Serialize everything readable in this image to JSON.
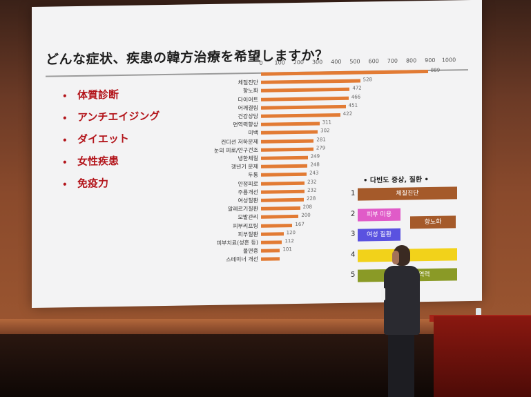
{
  "slide": {
    "title": "どんな症状、疾患の韓方治療を希望しますか？",
    "bullets": [
      "体質診断",
      "アンチエイジング",
      "ダイエット",
      "女性疾患",
      "免疫力"
    ]
  },
  "chart_data": {
    "type": "bar",
    "orientation": "horizontal",
    "xlim": [
      0,
      1000
    ],
    "ticks": [
      "0",
      "100",
      "200",
      "300",
      "400",
      "500",
      "600",
      "700",
      "800",
      "900",
      "1000"
    ],
    "categories": [
      "",
      "체질진단",
      "항노화",
      "다이어트",
      "어깨결림",
      "건강상담",
      "면역력향상",
      "미백",
      "컨디션 저하문제",
      "눈의 피로/안구건조",
      "냉한체질",
      "갱년기 문제",
      "두통",
      "안정피로",
      "주름개선",
      "여성질환",
      "알레르기질환",
      "모발관리",
      "피부리프팅",
      "피부질환",
      "피부치료(성흔 등)",
      "불면증",
      "스테미너 개선"
    ],
    "values": [
      889,
      528,
      472,
      466,
      451,
      422,
      311,
      302,
      281,
      279,
      249,
      248,
      243,
      232,
      232,
      228,
      208,
      200,
      167,
      120,
      112,
      101,
      101
    ],
    "labels": [
      "889",
      "528",
      "472",
      "466",
      "451",
      "422",
      "311",
      "302",
      "281",
      "279",
      "249",
      "248",
      "243",
      "232",
      "232",
      "228",
      "208",
      "200",
      "167",
      "120",
      "112",
      "101",
      ""
    ],
    "colors": {
      "bar": "#e27b34"
    }
  },
  "legend": {
    "title": "• 다빈도 증상, 질환 •",
    "numbers": [
      "1",
      "2",
      "3",
      "4",
      "5"
    ],
    "boxes": [
      {
        "text": "체질진단",
        "color": "#a55a2a"
      },
      {
        "text": "피부 미용",
        "color": "#e05bc8"
      },
      {
        "text": "항노화",
        "color": "#a55a2a"
      },
      {
        "text": "여성 질환",
        "color": "#5a52e0"
      },
      {
        "text": "",
        "color": "#f2d21a"
      },
      {
        "text": "미백(자   ), 면역력",
        "color": "#8a9a26"
      }
    ]
  }
}
